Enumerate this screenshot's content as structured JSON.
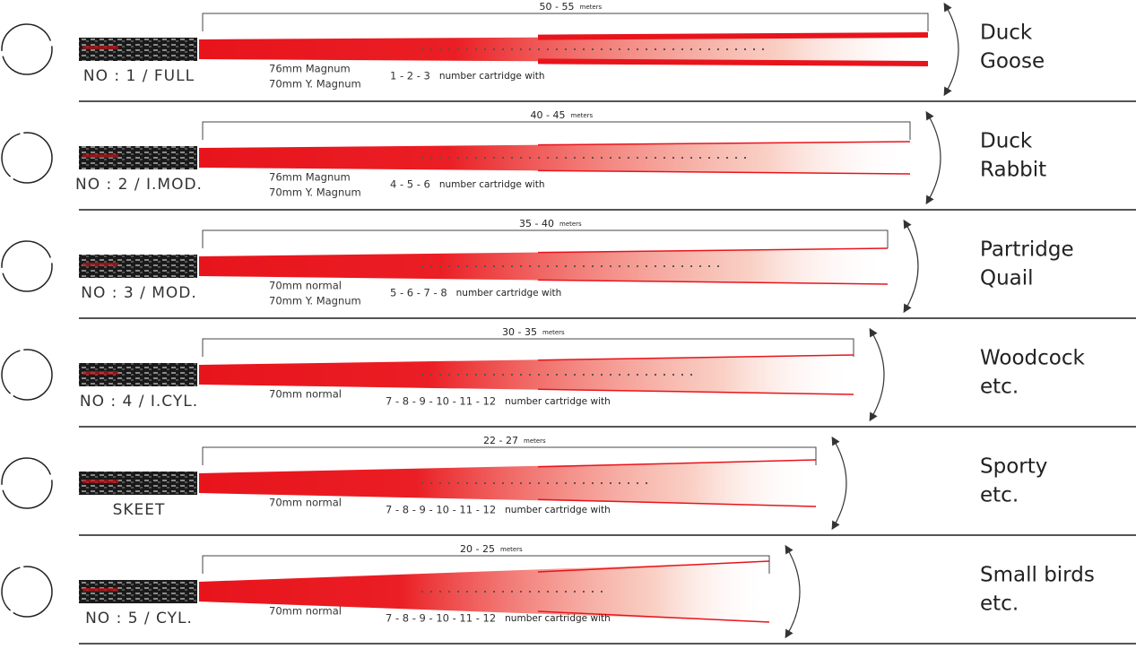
{
  "rows": [
    {
      "label": "NO : 1 / FULL",
      "range": "50 - 55",
      "unit": "meters",
      "cartridges": [
        "76mm Magnum",
        "70mm Y. Magnum"
      ],
      "shot_numbers": "1 - 2 - 3",
      "shot_text": "number cartridge with",
      "game": [
        "Duck",
        "Goose"
      ]
    },
    {
      "label": "NO : 2 / I.MOD.",
      "range": "40 - 45",
      "unit": "meters",
      "cartridges": [
        "76mm Magnum",
        "70mm Y. Magnum"
      ],
      "shot_numbers": "4 - 5 - 6",
      "shot_text": "number cartridge with",
      "game": [
        "Duck",
        "Rabbit"
      ]
    },
    {
      "label": "NO : 3 / MOD.",
      "range": "35 - 40",
      "unit": "meters",
      "cartridges": [
        "70mm normal",
        "70mm Y. Magnum"
      ],
      "shot_numbers": "5 - 6 - 7 - 8",
      "shot_text": "number cartridge with",
      "game": [
        "Partridge",
        "Quail"
      ]
    },
    {
      "label": "NO : 4 / I.CYL.",
      "range": "30 - 35",
      "unit": "meters",
      "cartridges": [
        "70mm normal"
      ],
      "shot_numbers": "7 - 8 - 9 - 10 - 11 - 12",
      "shot_text": "number cartridge with",
      "game": [
        "Woodcock",
        "etc."
      ]
    },
    {
      "label": "SKEET",
      "range": "22 - 27",
      "unit": "meters",
      "cartridges": [
        "70mm normal"
      ],
      "shot_numbers": "7 - 8 - 9 - 10 - 11 - 12",
      "shot_text": "number cartridge with",
      "game": [
        "Sporty",
        "etc."
      ]
    },
    {
      "label": "NO : 5 / CYL.",
      "range": "20 - 25",
      "unit": "meters",
      "cartridges": [
        "70mm normal"
      ],
      "shot_numbers": "7 - 8 - 9 - 10 - 11 - 12",
      "shot_text": "number cartridge with",
      "game": [
        "Small birds",
        "etc."
      ]
    }
  ]
}
